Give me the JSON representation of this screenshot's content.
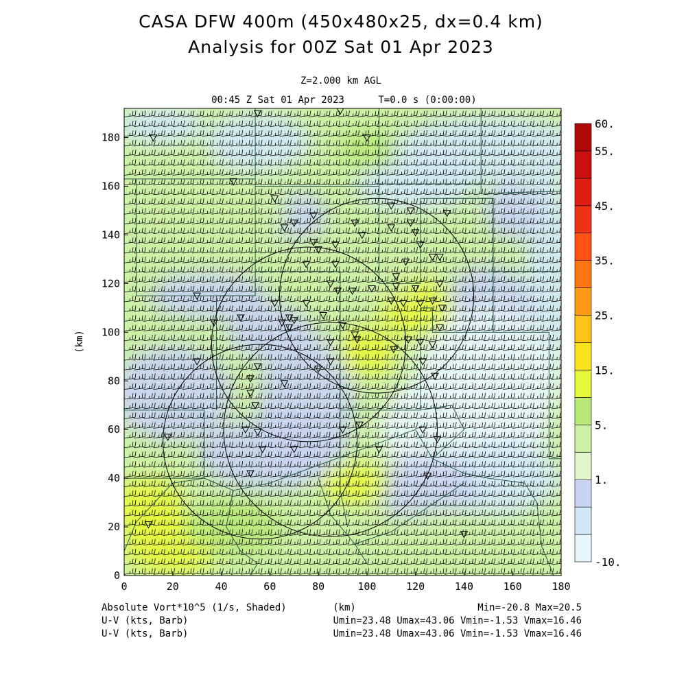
{
  "header": {
    "title_line1": "CASA DFW 400m (450x480x25, dx=0.4 km)",
    "title_line2": "Analysis for 00Z Sat 01 Apr 2023",
    "level": "Z=2.000 km AGL",
    "valid_time": "00:45 Z Sat 01 Apr 2023",
    "forecast_time": "T=0.0 s (0:00:00)"
  },
  "footer": {
    "field1_label": "Absolute Vort*10^5 (1/s, Shaded)",
    "x_unit": "(km)",
    "minmax": "Min=-20.8 Max=20.5",
    "field2_label": "U-V (kts, Barb)",
    "field2_stats": "Umin=23.48 Umax=43.06 Vmin=-1.53 Vmax=16.46",
    "field3_label": "U-V (kts, Barb)",
    "field3_stats": "Umin=23.48 Umax=43.06 Vmin=-1.53 Vmax=16.46"
  },
  "chart_data": {
    "type": "heatmap",
    "title": "CASA DFW 400m (450x480x25, dx=0.4 km)",
    "subtitle": "Analysis for 00Z Sat 01 Apr 2023",
    "xlabel": "(km)",
    "ylabel": "(km)",
    "xlim": [
      0,
      180
    ],
    "ylim": [
      0,
      192
    ],
    "x_ticks": [
      0,
      20,
      40,
      60,
      80,
      100,
      120,
      140,
      160,
      180
    ],
    "y_ticks": [
      0,
      20,
      40,
      60,
      80,
      100,
      120,
      140,
      160,
      180
    ],
    "shaded_field": "Absolute Vort*10^5 (1/s, Shaded)",
    "value_min": -20.8,
    "value_max": 20.5,
    "colorbar": {
      "labels": [
        "-10.",
        "1.",
        "5.",
        "15.",
        "25.",
        "35.",
        "45.",
        "55.",
        "60."
      ],
      "levels": [
        -10,
        -5,
        0,
        1,
        2.5,
        5,
        10,
        15,
        20,
        25,
        30,
        35,
        40,
        45,
        50,
        55,
        60
      ],
      "colors": [
        "#e6f6fa",
        "#d0e8f6",
        "#c8d4f2",
        "#e2f6cc",
        "#cdf0a6",
        "#b8e878",
        "#e6f83a",
        "#ffe21e",
        "#ffc31a",
        "#ff9a16",
        "#ff7614",
        "#ff5214",
        "#ee3214",
        "#de1e14",
        "#c8100e",
        "#ae0a0a"
      ]
    },
    "barb_field": "U-V (kts, Barb)",
    "u_range": [
      23.48,
      43.06
    ],
    "v_range": [
      -1.53,
      16.46
    ],
    "radar_range_rings_km": [
      {
        "center": [
          56,
          55
        ],
        "radius": 40
      },
      {
        "center": [
          85,
          60
        ],
        "radius": 44
      },
      {
        "center": [
          76,
          95
        ],
        "radius": 40
      },
      {
        "center": [
          104,
          115
        ],
        "radius": 40
      }
    ]
  }
}
